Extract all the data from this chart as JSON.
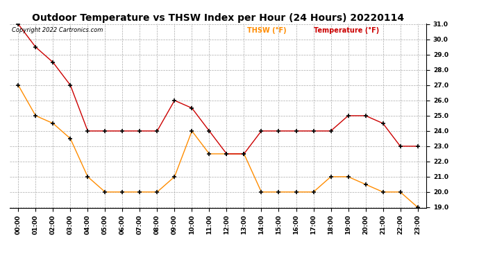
{
  "title": "Outdoor Temperature vs THSW Index per Hour (24 Hours) 20220114",
  "copyright": "Copyright 2022 Cartronics.com",
  "legend_thsw": "THSW (°F)",
  "legend_temp": "Temperature (°F)",
  "x_labels": [
    "00:00",
    "01:00",
    "02:00",
    "03:00",
    "04:00",
    "05:00",
    "06:00",
    "07:00",
    "08:00",
    "09:00",
    "10:00",
    "11:00",
    "12:00",
    "13:00",
    "14:00",
    "15:00",
    "16:00",
    "17:00",
    "18:00",
    "19:00",
    "20:00",
    "21:00",
    "22:00",
    "23:00"
  ],
  "temperature": [
    31.0,
    29.5,
    28.5,
    27.0,
    24.0,
    24.0,
    24.0,
    24.0,
    24.0,
    26.0,
    25.5,
    24.0,
    22.5,
    22.5,
    24.0,
    24.0,
    24.0,
    24.0,
    24.0,
    25.0,
    25.0,
    24.5,
    23.0,
    23.0
  ],
  "thsw": [
    27.0,
    25.0,
    24.5,
    23.5,
    21.0,
    20.0,
    20.0,
    20.0,
    20.0,
    21.0,
    24.0,
    22.5,
    22.5,
    22.5,
    20.0,
    20.0,
    20.0,
    20.0,
    21.0,
    21.0,
    20.5,
    20.0,
    20.0,
    19.0
  ],
  "thsw_color": "#FF8C00",
  "temp_color": "#CC0000",
  "marker_color": "black",
  "ylim_min": 19.0,
  "ylim_max": 31.0,
  "ytick_step": 1.0,
  "background_color": "#ffffff",
  "grid_color": "#aaaaaa",
  "title_fontsize": 10,
  "legend_color_thsw": "#FF8C00",
  "legend_color_temp": "#CC0000"
}
